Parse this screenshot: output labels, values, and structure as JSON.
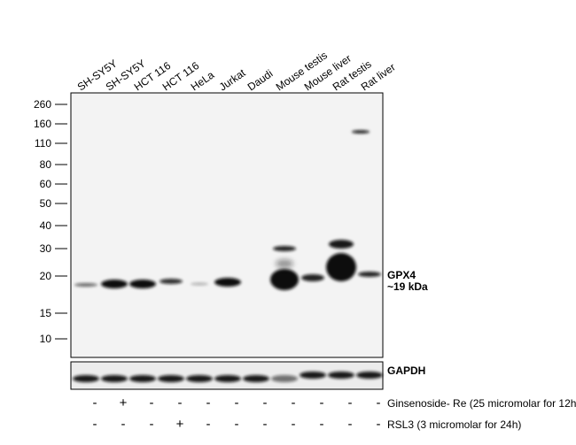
{
  "lanes": [
    "SH-SY5Y",
    "SH-SY5Y",
    "HCT 116",
    "HCT 116",
    "HeLa",
    "Jurkat",
    "Daudi",
    "Mouse testis",
    "Mouse liver",
    "Rat testis",
    "Rat liver"
  ],
  "markers": [
    260,
    160,
    110,
    80,
    60,
    50,
    40,
    30,
    20,
    15,
    10
  ],
  "target": {
    "name": "GPX4",
    "size": "~19 kDa"
  },
  "loading_control": "GAPDH",
  "treatments": [
    {
      "label": "Ginsenoside- Re (25 micromolar for 12h)",
      "signs": [
        "-",
        "+",
        "-",
        "-",
        "-",
        "-",
        "-",
        "-",
        "-",
        "-",
        "-"
      ]
    },
    {
      "label": "RSL3 (3 micromolar for 24h)",
      "signs": [
        "-",
        "-",
        "-",
        "+",
        "-",
        "-",
        "-",
        "-",
        "-",
        "-",
        "-"
      ]
    }
  ]
}
